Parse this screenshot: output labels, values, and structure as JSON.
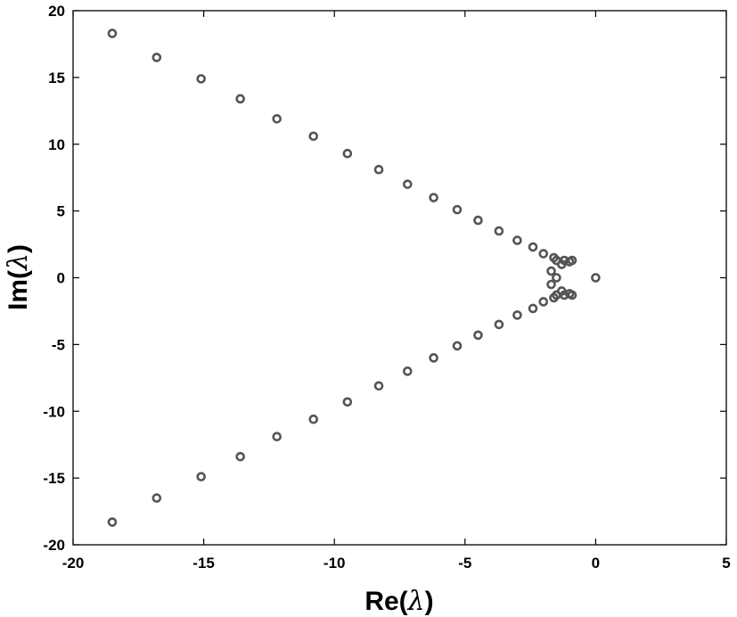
{
  "chart_data": {
    "type": "scatter",
    "title": "",
    "xlabel": {
      "prefix": "Re(",
      "symbol": "λ",
      "suffix": ")"
    },
    "ylabel": {
      "prefix": "Im(",
      "symbol": "λ",
      "suffix": ")"
    },
    "xlim": [
      -20,
      5
    ],
    "ylim": [
      -20,
      20
    ],
    "xticks": [
      -20,
      -15,
      -10,
      -5,
      0,
      5
    ],
    "yticks": [
      -20,
      -15,
      -10,
      -5,
      0,
      5,
      10,
      15,
      20
    ],
    "grid": false,
    "legend": "none",
    "marker": "circle",
    "marker_color": "#555555",
    "series": [
      {
        "points": [
          {
            "x": -18.5,
            "y": 18.3
          },
          {
            "x": -16.8,
            "y": 16.5
          },
          {
            "x": -15.1,
            "y": 14.9
          },
          {
            "x": -13.6,
            "y": 13.4
          },
          {
            "x": -12.2,
            "y": 11.9
          },
          {
            "x": -10.8,
            "y": 10.6
          },
          {
            "x": -9.5,
            "y": 9.3
          },
          {
            "x": -8.3,
            "y": 8.1
          },
          {
            "x": -7.2,
            "y": 7.0
          },
          {
            "x": -6.2,
            "y": 6.0
          },
          {
            "x": -5.3,
            "y": 5.1
          },
          {
            "x": -4.5,
            "y": 4.3
          },
          {
            "x": -3.7,
            "y": 3.5
          },
          {
            "x": -3.0,
            "y": 2.8
          },
          {
            "x": -2.4,
            "y": 2.3
          },
          {
            "x": -2.0,
            "y": 1.8
          },
          {
            "x": -1.6,
            "y": 1.5
          },
          {
            "x": -1.5,
            "y": 1.3
          },
          {
            "x": -1.3,
            "y": 1.0
          },
          {
            "x": -1.2,
            "y": 1.3
          },
          {
            "x": -1.0,
            "y": 1.2
          },
          {
            "x": -0.9,
            "y": 1.3
          },
          {
            "x": -1.7,
            "y": 0.5
          },
          {
            "x": -1.5,
            "y": 0.0
          },
          {
            "x": -1.7,
            "y": -0.5
          },
          {
            "x": 0.0,
            "y": 0.0
          },
          {
            "x": -0.9,
            "y": -1.3
          },
          {
            "x": -1.0,
            "y": -1.2
          },
          {
            "x": -1.2,
            "y": -1.3
          },
          {
            "x": -1.3,
            "y": -1.0
          },
          {
            "x": -1.5,
            "y": -1.3
          },
          {
            "x": -1.6,
            "y": -1.5
          },
          {
            "x": -2.0,
            "y": -1.8
          },
          {
            "x": -2.4,
            "y": -2.3
          },
          {
            "x": -3.0,
            "y": -2.8
          },
          {
            "x": -3.7,
            "y": -3.5
          },
          {
            "x": -4.5,
            "y": -4.3
          },
          {
            "x": -5.3,
            "y": -5.1
          },
          {
            "x": -6.2,
            "y": -6.0
          },
          {
            "x": -7.2,
            "y": -7.0
          },
          {
            "x": -8.3,
            "y": -8.1
          },
          {
            "x": -9.5,
            "y": -9.3
          },
          {
            "x": -10.8,
            "y": -10.6
          },
          {
            "x": -12.2,
            "y": -11.9
          },
          {
            "x": -13.6,
            "y": -13.4
          },
          {
            "x": -15.1,
            "y": -14.9
          },
          {
            "x": -16.8,
            "y": -16.5
          },
          {
            "x": -18.5,
            "y": -18.3
          }
        ]
      }
    ]
  }
}
